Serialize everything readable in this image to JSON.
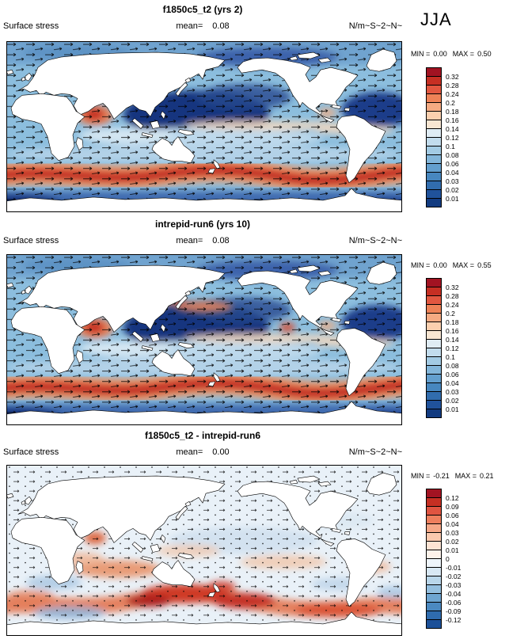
{
  "season_label": "JJA",
  "panels": [
    {
      "title": "f1850c5_t2 (yrs 2)",
      "variable": "Surface stress",
      "mean_label": "mean=",
      "mean_value": "0.08",
      "units": "N/m~S~2~N~",
      "min_label": "MIN =",
      "min_value": "0.00",
      "max_label": "MAX =",
      "max_value": "0.50",
      "colorbar": {
        "tick_labels": [
          "0.32",
          "0.28",
          "0.24",
          "0.2",
          "0.18",
          "0.16",
          "0.14",
          "0.12",
          "0.1",
          "0.08",
          "0.06",
          "0.04",
          "0.03",
          "0.02",
          "0.01"
        ],
        "colors": [
          "#a21322",
          "#c62f23",
          "#e25740",
          "#ee8257",
          "#f5aa82",
          "#fbcfae",
          "#f8e6d2",
          "#dfecf4",
          "#c2dced",
          "#a3cbe4",
          "#83b6da",
          "#639fce",
          "#4787bf",
          "#316dae",
          "#20529b",
          "#123b80"
        ]
      }
    },
    {
      "title": "intrepid-run6 (yrs 10)",
      "variable": "Surface stress",
      "mean_label": "mean=",
      "mean_value": "0.08",
      "units": "N/m~S~2~N~",
      "min_label": "MIN =",
      "min_value": "0.00",
      "max_label": "MAX =",
      "max_value": "0.55",
      "colorbar": {
        "tick_labels": [
          "0.32",
          "0.28",
          "0.24",
          "0.2",
          "0.18",
          "0.16",
          "0.14",
          "0.12",
          "0.1",
          "0.08",
          "0.06",
          "0.04",
          "0.03",
          "0.02",
          "0.01"
        ],
        "colors": [
          "#a21322",
          "#c62f23",
          "#e25740",
          "#ee8257",
          "#f5aa82",
          "#fbcfae",
          "#f8e6d2",
          "#dfecf4",
          "#c2dced",
          "#a3cbe4",
          "#83b6da",
          "#639fce",
          "#4787bf",
          "#316dae",
          "#20529b",
          "#123b80"
        ]
      }
    },
    {
      "title": "f1850c5_t2 - intrepid-run6",
      "variable": "Surface stress",
      "mean_label": "mean=",
      "mean_value": "0.00",
      "units": "N/m~S~2~N~",
      "min_label": "MIN =",
      "min_value": "-0.21",
      "max_label": "MAX =",
      "max_value": "0.21",
      "colorbar": {
        "tick_labels": [
          "0.12",
          "0.09",
          "0.06",
          "0.04",
          "0.03",
          "0.02",
          "0.01",
          "0",
          "-0.01",
          "-0.02",
          "-0.03",
          "-0.04",
          "-0.06",
          "-0.09",
          "-0.12"
        ],
        "colors": [
          "#a21322",
          "#c62f23",
          "#e05441",
          "#ee7f5e",
          "#f6a888",
          "#fbc9ae",
          "#fde3d3",
          "#fdf2ea",
          "#eef5fb",
          "#d8e8f4",
          "#b9d6ea",
          "#94bfdf",
          "#6ea5d1",
          "#4b89c1",
          "#2f6cae",
          "#1c5098"
        ]
      }
    }
  ],
  "chart_data": [
    {
      "type": "heatmap",
      "subtype": "global map with vector (wind stress) overlay",
      "title": "f1850c5_t2 (yrs 2)",
      "variable": "Surface stress",
      "season": "JJA",
      "units_as_printed": "N/m~S~2~N~",
      "mean": 0.08,
      "min": 0.0,
      "max": 0.5,
      "contour_levels": [
        0.01,
        0.02,
        0.03,
        0.04,
        0.06,
        0.08,
        0.1,
        0.12,
        0.14,
        0.16,
        0.18,
        0.2,
        0.24,
        0.28,
        0.32
      ],
      "palette_top_to_bottom": [
        "#a21322",
        "#c62f23",
        "#e25740",
        "#ee8257",
        "#f5aa82",
        "#fbcfae",
        "#f8e6d2",
        "#dfecf4",
        "#c2dced",
        "#a3cbe4",
        "#83b6da",
        "#639fce",
        "#4787bf",
        "#316dae",
        "#20529b",
        "#123b80"
      ],
      "legend_position": "right"
    },
    {
      "type": "heatmap",
      "subtype": "global map with vector (wind stress) overlay",
      "title": "intrepid-run6 (yrs 10)",
      "variable": "Surface stress",
      "season": "JJA",
      "units_as_printed": "N/m~S~2~N~",
      "mean": 0.08,
      "min": 0.0,
      "max": 0.55,
      "contour_levels": [
        0.01,
        0.02,
        0.03,
        0.04,
        0.06,
        0.08,
        0.1,
        0.12,
        0.14,
        0.16,
        0.18,
        0.2,
        0.24,
        0.28,
        0.32
      ],
      "palette_top_to_bottom": [
        "#a21322",
        "#c62f23",
        "#e25740",
        "#ee8257",
        "#f5aa82",
        "#fbcfae",
        "#f8e6d2",
        "#dfecf4",
        "#c2dced",
        "#a3cbe4",
        "#83b6da",
        "#639fce",
        "#4787bf",
        "#316dae",
        "#20529b",
        "#123b80"
      ],
      "legend_position": "right"
    },
    {
      "type": "heatmap",
      "subtype": "difference map with vector overlay",
      "title": "f1850c5_t2 - intrepid-run6",
      "variable": "Surface stress",
      "season": "JJA",
      "units_as_printed": "N/m~S~2~N~",
      "mean": 0.0,
      "min": -0.21,
      "max": 0.21,
      "contour_levels": [
        -0.12,
        -0.09,
        -0.06,
        -0.04,
        -0.03,
        -0.02,
        -0.01,
        0,
        0.01,
        0.02,
        0.03,
        0.04,
        0.06,
        0.09,
        0.12
      ],
      "palette_top_to_bottom": [
        "#a21322",
        "#c62f23",
        "#e05441",
        "#ee7f5e",
        "#f6a888",
        "#fbc9ae",
        "#fde3d3",
        "#fdf2ea",
        "#eef5fb",
        "#d8e8f4",
        "#b9d6ea",
        "#94bfdf",
        "#6ea5d1",
        "#4b89c1",
        "#2f6cae",
        "#1c5098"
      ],
      "legend_position": "right"
    }
  ]
}
